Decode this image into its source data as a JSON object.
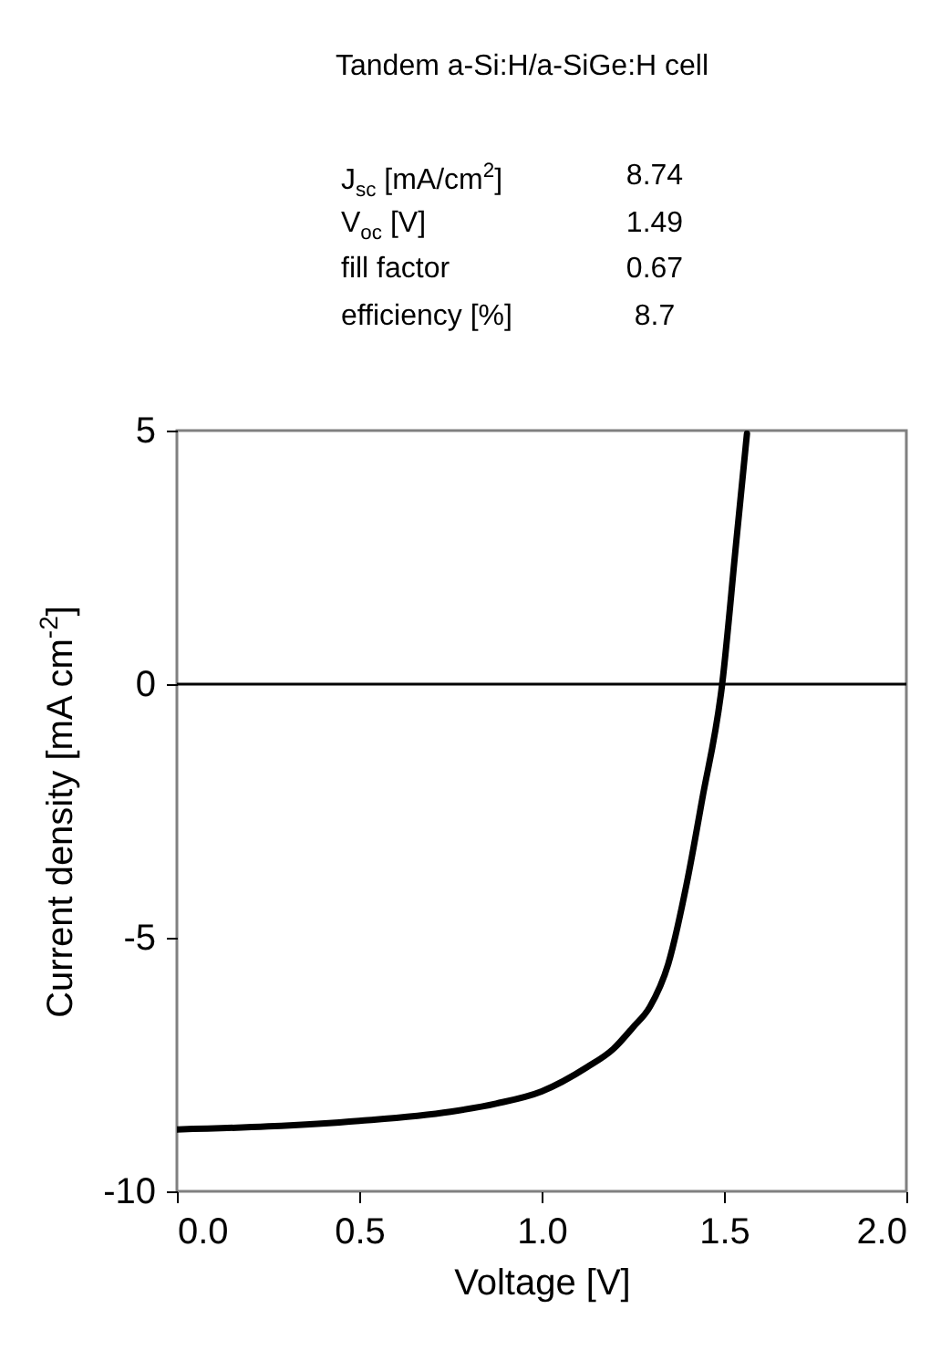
{
  "chart_data": {
    "type": "line",
    "title": "Tandem a-Si:H/a-SiGe:H cell",
    "annotations": [
      "J$_{sc}$ [mA/cm$^{2}$]",
      "8.74",
      "V$_{oc}$ [V]",
      "1.49",
      "fill factor",
      "0.67",
      "efficiency [%]",
      "8.7"
    ],
    "xlabel": "Voltage [V]",
    "ylabel": "Current density [mA cm$^{-2}$]",
    "series": [
      {
        "color": "#000000",
        "x": [
          0,
          0.25,
          0.5,
          0.75,
          0.875,
          1.0,
          1.125,
          1.197,
          1.25,
          1.297,
          1.347,
          1.397,
          1.44,
          1.495,
          1.533,
          1.563
        ],
        "values": [
          -8.78,
          -8.72,
          -8.61,
          -8.43,
          -8.27,
          -8.03,
          -7.55,
          -7.19,
          -6.77,
          -6.36,
          -5.52,
          -3.96,
          -2.28,
          0,
          2.76,
          4.94
        ]
      }
    ],
    "xlim": [
      0,
      2
    ],
    "ylim": [
      -10,
      5
    ],
    "xticks": [
      {
        "value": 0,
        "label": "0.0"
      },
      0.5,
      {
        "value": 1,
        "label": "1.0"
      },
      1.5,
      {
        "value": 2,
        "label": "2.0"
      }
    ],
    "yticks": [
      -10,
      -5,
      0,
      5
    ],
    "ref_lines": [
      {
        "axis": "y",
        "value": 0,
        "color": "#000000"
      }
    ],
    "line_style": "solid"
  }
}
